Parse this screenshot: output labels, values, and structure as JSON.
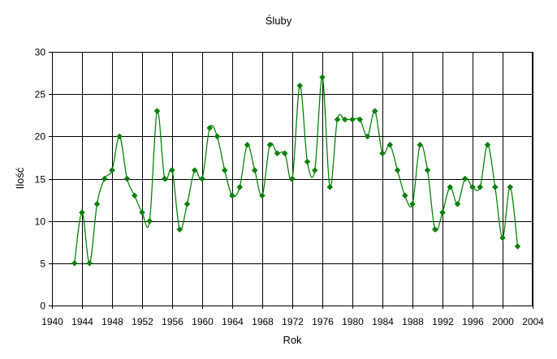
{
  "chart_data": {
    "type": "line",
    "title": "Śluby",
    "xlabel": "Rok",
    "ylabel": "Ilość",
    "xlim": [
      1940,
      2004
    ],
    "ylim": [
      0,
      30
    ],
    "x_ticks": [
      1940,
      1944,
      1948,
      1952,
      1956,
      1960,
      1964,
      1968,
      1972,
      1976,
      1980,
      1984,
      1988,
      1992,
      1996,
      2000,
      2004
    ],
    "y_ticks": [
      0,
      5,
      10,
      15,
      20,
      25,
      30
    ],
    "grid": true,
    "legend": "none",
    "series": [
      {
        "color": "#008000",
        "x": [
          1943,
          1944,
          1945,
          1946,
          1947,
          1948,
          1949,
          1950,
          1951,
          1952,
          1953,
          1954,
          1955,
          1956,
          1957,
          1958,
          1959,
          1960,
          1961,
          1962,
          1963,
          1964,
          1965,
          1966,
          1967,
          1968,
          1969,
          1970,
          1971,
          1972,
          1973,
          1974,
          1975,
          1976,
          1977,
          1978,
          1979,
          1980,
          1981,
          1982,
          1983,
          1984,
          1985,
          1986,
          1987,
          1988,
          1989,
          1990,
          1991,
          1992,
          1993,
          1994,
          1995,
          1996,
          1997,
          1998,
          1999,
          2000,
          2001,
          2002
        ],
        "values": [
          5,
          11,
          5,
          12,
          15,
          16,
          20,
          15,
          13,
          11,
          10,
          23,
          15,
          16,
          9,
          12,
          16,
          15,
          21,
          20,
          16,
          13,
          14,
          19,
          16,
          13,
          19,
          18,
          18,
          15,
          26,
          17,
          16,
          27,
          14,
          22,
          22,
          22,
          22,
          20,
          23,
          18,
          19,
          16,
          13,
          12,
          19,
          16,
          9,
          11,
          14,
          12,
          15,
          14,
          14,
          19,
          14,
          8,
          14,
          7
        ]
      }
    ]
  }
}
